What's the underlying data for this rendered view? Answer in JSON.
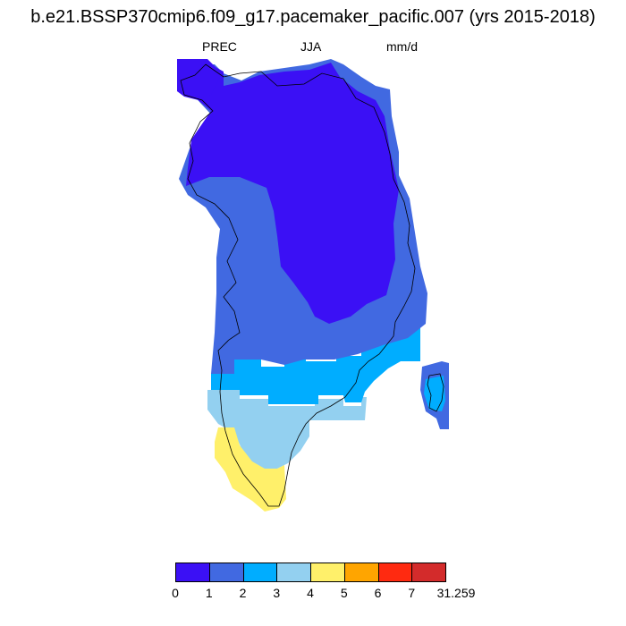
{
  "title": "b.e21.BSSP370cmip6.f09_g17.pacemaker_pacific.007 (yrs 2015-2018)",
  "subtitle": {
    "left": "PREC",
    "center": "JJA",
    "right": "mm/d"
  },
  "colorbar": {
    "colors": [
      "#3b10f5",
      "#4169e1",
      "#00adff",
      "#93d0f0",
      "#fff06a",
      "#ffa500",
      "#ff2a10",
      "#d32b2b"
    ],
    "labels": [
      "0",
      "1",
      "2",
      "3",
      "4",
      "5",
      "6",
      "7",
      "31.259"
    ]
  }
}
